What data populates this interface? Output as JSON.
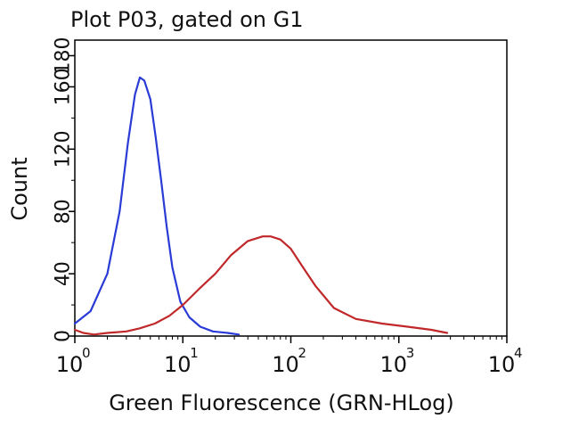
{
  "chart_data": {
    "type": "line",
    "title": "Plot P03, gated on G1",
    "xlabel": "Green Fluorescence (GRN-HLog)",
    "ylabel": "Count",
    "x_scale": "log",
    "xlim": [
      1,
      10000
    ],
    "ylim": [
      0,
      190
    ],
    "x_ticks": [
      {
        "base": "10",
        "exp": "0",
        "value": 1
      },
      {
        "base": "10",
        "exp": "1",
        "value": 10
      },
      {
        "base": "10",
        "exp": "2",
        "value": 100
      },
      {
        "base": "10",
        "exp": "3",
        "value": 1000
      },
      {
        "base": "10",
        "exp": "4",
        "value": 10000
      }
    ],
    "y_ticks": [
      "0",
      "40",
      "80",
      "120",
      "160",
      "180"
    ],
    "y_tick_values": [
      0,
      40,
      80,
      120,
      160,
      180
    ],
    "grid": false,
    "legend": "none",
    "series": [
      {
        "color": "#2a3bd6",
        "x": [
          1.0,
          1.4,
          2.0,
          2.6,
          3.1,
          3.6,
          4.0,
          4.4,
          5.0,
          5.6,
          6.3,
          7.1,
          8.0,
          9.5,
          11.5,
          14.5,
          19.0,
          26.0,
          33.0
        ],
        "y": [
          8,
          16,
          40,
          80,
          124,
          155,
          166,
          164,
          152,
          128,
          100,
          70,
          44,
          22,
          12,
          6,
          3,
          2,
          1
        ]
      },
      {
        "color": "#c0282a",
        "x": [
          1.0,
          1.2,
          1.5,
          2.0,
          3.0,
          4.0,
          5.5,
          7.5,
          10,
          14,
          20,
          28,
          40,
          55,
          65,
          80,
          100,
          130,
          170,
          250,
          400,
          700,
          1200,
          2000,
          2800
        ],
        "y": [
          4,
          2,
          1,
          2,
          3,
          5,
          8,
          13,
          20,
          30,
          40,
          52,
          61,
          64,
          64,
          62,
          56,
          44,
          32,
          18,
          11,
          8,
          6,
          4,
          2
        ]
      }
    ]
  }
}
